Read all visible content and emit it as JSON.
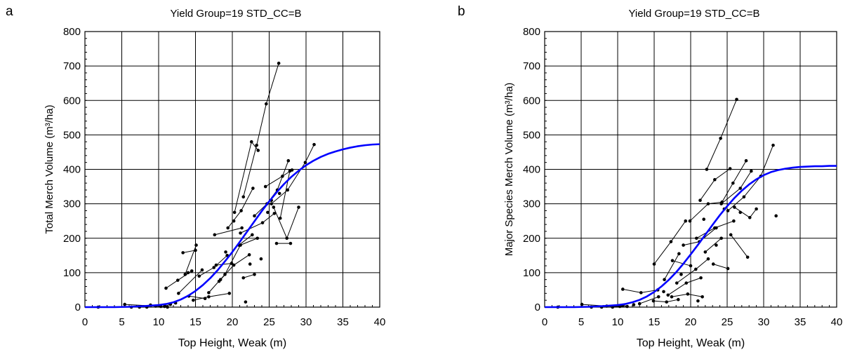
{
  "chart_data": [
    {
      "panel_label": "a",
      "type": "scatter",
      "title": "Yield Group=19 STD_CC=B",
      "xlabel": "Top Height, Weak (m)",
      "ylabel": "Total Merch Volume (m³/ha)",
      "xlim": [
        0,
        40
      ],
      "ylim": [
        0,
        800
      ],
      "x_ticks": [
        "0",
        "5",
        "10",
        "15",
        "20",
        "25",
        "30",
        "35",
        "40"
      ],
      "y_ticks": [
        "0",
        "100",
        "200",
        "300",
        "400",
        "500",
        "600",
        "700",
        "800"
      ],
      "grid": true,
      "curve_color": "#0000ff",
      "points_color": "#000000",
      "yield_curve": {
        "x": [
          0,
          4,
          6,
          8,
          10,
          11,
          12,
          13,
          14,
          15,
          16,
          17,
          18,
          19,
          20,
          21,
          22,
          23,
          24,
          25,
          26,
          27,
          28,
          29,
          30,
          31,
          32,
          33,
          34,
          35,
          36,
          37,
          38,
          39,
          40
        ],
        "y": [
          0,
          0,
          1,
          3,
          6,
          9,
          14,
          22,
          33,
          47,
          64,
          84,
          107,
          133,
          160,
          189,
          219,
          249,
          279,
          307,
          333,
          357,
          378,
          396,
          412,
          425,
          436,
          445,
          452,
          458,
          463,
          467,
          470,
          472,
          473
        ]
      },
      "observations": [
        {
          "x": [
            21.5,
            23.3,
            24.6,
            26.3
          ],
          "y": [
            320,
            470,
            590,
            708
          ]
        },
        {
          "x": [
            20.3,
            22.6,
            23.5
          ],
          "y": [
            275,
            480,
            455
          ]
        },
        {
          "x": [
            11,
            12.6,
            14.5
          ],
          "y": [
            55,
            78,
            105
          ]
        },
        {
          "x": [
            13.6,
            15.1
          ],
          "y": [
            95,
            180
          ]
        },
        {
          "x": [
            13.3,
            15
          ],
          "y": [
            158,
            165
          ]
        },
        {
          "x": [
            15.5,
            17.5,
            19.3
          ],
          "y": [
            90,
            115,
            150
          ]
        },
        {
          "x": [
            17.6,
            21.3
          ],
          "y": [
            210,
            230
          ]
        },
        {
          "x": [
            19.4,
            21.2,
            22.8
          ],
          "y": [
            230,
            280,
            345
          ]
        },
        {
          "x": [
            23,
            24.7,
            26.1,
            27.6
          ],
          "y": [
            265,
            300,
            340,
            425
          ]
        },
        {
          "x": [
            24.5,
            26.8,
            28.1
          ],
          "y": [
            350,
            380,
            398
          ]
        },
        {
          "x": [
            25.3,
            27.5,
            29.9,
            31.1
          ],
          "y": [
            300,
            340,
            420,
            472
          ]
        },
        {
          "x": [
            26.5,
            27.8
          ],
          "y": [
            258,
            395
          ]
        },
        {
          "x": [
            25.6,
            27.4,
            29
          ],
          "y": [
            290,
            200,
            290
          ]
        },
        {
          "x": [
            26,
            27.9
          ],
          "y": [
            185,
            185
          ]
        },
        {
          "x": [
            21.1,
            24.1,
            25.7
          ],
          "y": [
            215,
            245,
            272
          ]
        },
        {
          "x": [
            18.2,
            20.2,
            22.3
          ],
          "y": [
            75,
            122,
            152
          ]
        },
        {
          "x": [
            16.8,
            19,
            21.1,
            23.4
          ],
          "y": [
            42,
            95,
            180,
            200
          ]
        },
        {
          "x": [
            17.8,
            19.9
          ],
          "y": [
            122,
            127
          ]
        },
        {
          "x": [
            14.1,
            16.3
          ],
          "y": [
            32,
            25
          ]
        },
        {
          "x": [
            12.7,
            15.9
          ],
          "y": [
            40,
            108
          ]
        },
        {
          "x": [
            10.8,
            11.6
          ],
          "y": [
            2,
            8
          ]
        },
        {
          "x": [
            5.4,
            10.3,
            11.2
          ],
          "y": [
            8,
            2,
            0
          ]
        },
        {
          "x": [
            7.4,
            8.9
          ],
          "y": [
            0,
            6
          ]
        },
        {
          "x": [
            14.7,
            16.8,
            19.6
          ],
          "y": [
            20,
            30,
            40
          ]
        },
        {
          "x": [
            20.9,
            22.7
          ],
          "y": [
            180,
            210
          ]
        },
        {
          "x": [
            21.5,
            23
          ],
          "y": [
            85,
            95
          ]
        }
      ],
      "single_points": [
        [
          1.8,
          0
        ],
        [
          6.3,
          0
        ],
        [
          8.4,
          0
        ],
        [
          9.6,
          3
        ],
        [
          21.8,
          15
        ],
        [
          12.3,
          12
        ],
        [
          14,
          100
        ],
        [
          18.4,
          80
        ],
        [
          23.9,
          140
        ],
        [
          26.4,
          330
        ],
        [
          24.8,
          275
        ],
        [
          25.3,
          310
        ],
        [
          22.4,
          125
        ],
        [
          20.2,
          250
        ],
        [
          19.1,
          160
        ]
      ]
    },
    {
      "panel_label": "b",
      "type": "scatter",
      "title": "Yield Group=19 STD_CC=B",
      "xlabel": "Top Height, Weak (m)",
      "ylabel": "Major Species Merch Volume (m³/ha)",
      "xlim": [
        0,
        40
      ],
      "ylim": [
        0,
        800
      ],
      "x_ticks": [
        "0",
        "5",
        "10",
        "15",
        "20",
        "25",
        "30",
        "35",
        "40"
      ],
      "y_ticks": [
        "0",
        "100",
        "200",
        "300",
        "400",
        "500",
        "600",
        "700",
        "800"
      ],
      "grid": true,
      "curve_color": "#0000ff",
      "points_color": "#000000",
      "yield_curve": {
        "x": [
          0,
          4,
          6,
          8,
          10,
          11,
          12,
          13,
          14,
          15,
          16,
          17,
          18,
          19,
          20,
          21,
          22,
          23,
          24,
          25,
          26,
          27,
          28,
          29,
          30,
          31,
          32,
          33,
          34,
          35,
          36,
          37,
          38,
          39,
          40
        ],
        "y": [
          0,
          0,
          1,
          3,
          6,
          9,
          14,
          21,
          31,
          44,
          60,
          79,
          101,
          126,
          153,
          181,
          210,
          239,
          267,
          293,
          317,
          338,
          356,
          371,
          383,
          392,
          398,
          402,
          405,
          407,
          408,
          409,
          409,
          410,
          410
        ]
      },
      "observations": [
        {
          "x": [
            22.2,
            24.1,
            26.3
          ],
          "y": [
            400,
            490,
            603
          ]
        },
        {
          "x": [
            21.3,
            23.3,
            25.4
          ],
          "y": [
            310,
            370,
            402
          ]
        },
        {
          "x": [
            15,
            17.3,
            19.3
          ],
          "y": [
            125,
            190,
            250
          ]
        },
        {
          "x": [
            16.4,
            18.4
          ],
          "y": [
            80,
            155
          ]
        },
        {
          "x": [
            10.7,
            13.2,
            15.5
          ],
          "y": [
            52,
            42,
            50
          ]
        },
        {
          "x": [
            17.5,
            20
          ],
          "y": [
            135,
            120
          ]
        },
        {
          "x": [
            19.9,
            22.4,
            24.3,
            25.8,
            27.6
          ],
          "y": [
            250,
            300,
            305,
            360,
            425
          ]
        },
        {
          "x": [
            24.2,
            26.8,
            28.3
          ],
          "y": [
            300,
            345,
            395
          ]
        },
        {
          "x": [
            25.1,
            27.3,
            29.6,
            31.3
          ],
          "y": [
            280,
            320,
            380,
            470
          ]
        },
        {
          "x": [
            25.5,
            27.8
          ],
          "y": [
            210,
            145
          ]
        },
        {
          "x": [
            26,
            28.1,
            29
          ],
          "y": [
            290,
            260,
            285
          ]
        },
        {
          "x": [
            23.1,
            25.1
          ],
          "y": [
            125,
            112
          ]
        },
        {
          "x": [
            20.8,
            23.3,
            25.9
          ],
          "y": [
            200,
            230,
            250
          ]
        },
        {
          "x": [
            18.1,
            20.7,
            22.4
          ],
          "y": [
            70,
            110,
            140
          ]
        },
        {
          "x": [
            16.9,
            19.4,
            21.4
          ],
          "y": [
            35,
            70,
            85
          ]
        },
        {
          "x": [
            17.4,
            19.6,
            21.6
          ],
          "y": [
            30,
            38,
            30
          ]
        },
        {
          "x": [
            13,
            15.6
          ],
          "y": [
            10,
            30
          ]
        },
        {
          "x": [
            5.1,
            8.5,
            10.3
          ],
          "y": [
            8,
            3,
            2
          ]
        },
        {
          "x": [
            9.3,
            10.7
          ],
          "y": [
            0,
            4
          ]
        },
        {
          "x": [
            19,
            21.2,
            23.5
          ],
          "y": [
            180,
            190,
            230
          ]
        },
        {
          "x": [
            22,
            24.2
          ],
          "y": [
            160,
            200
          ]
        },
        {
          "x": [
            14.9,
            16.7,
            18.3
          ],
          "y": [
            18,
            15,
            22
          ]
        }
      ],
      "single_points": [
        [
          1.8,
          0
        ],
        [
          6.4,
          0
        ],
        [
          7.8,
          0
        ],
        [
          11.3,
          2
        ],
        [
          12.2,
          7
        ],
        [
          21,
          18
        ],
        [
          31.7,
          265
        ],
        [
          24.6,
          285
        ],
        [
          26.8,
          275
        ],
        [
          21.8,
          255
        ],
        [
          23.5,
          180
        ],
        [
          18.7,
          95
        ],
        [
          16.3,
          45
        ]
      ]
    }
  ]
}
